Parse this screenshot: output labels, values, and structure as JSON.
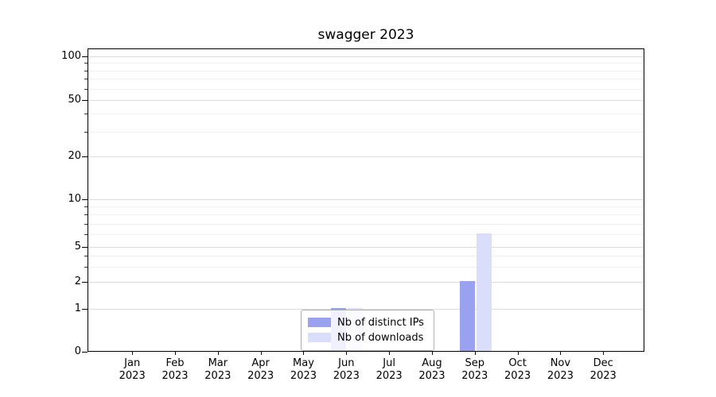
{
  "figure": {
    "title": "swagger 2023"
  },
  "chart_data": {
    "type": "bar",
    "title": "swagger 2023",
    "categories": [
      "Jan 2023",
      "Feb 2023",
      "Mar 2023",
      "Apr 2023",
      "May 2023",
      "Jun 2023",
      "Jul 2023",
      "Aug 2023",
      "Sep 2023",
      "Oct 2023",
      "Nov 2023",
      "Dec 2023"
    ],
    "series": [
      {
        "name": "Nb of distinct IPs",
        "color": "#9aa1ee",
        "values": [
          0,
          0,
          0,
          0,
          0,
          1,
          0,
          0,
          2,
          0,
          0,
          0
        ]
      },
      {
        "name": "Nb of downloads",
        "color": "#dbdefb",
        "values": [
          0,
          0,
          0,
          0,
          0,
          1,
          0,
          0,
          6,
          0,
          0,
          0
        ]
      }
    ],
    "xlabel": "",
    "ylabel": "",
    "yscale": "symlog",
    "ylim": [
      0,
      100
    ],
    "yticks": [
      0,
      1,
      2,
      5,
      10,
      20,
      50,
      100
    ],
    "yticks_minor": [
      3,
      4,
      6,
      7,
      8,
      9,
      30,
      40,
      60,
      70,
      80,
      90
    ],
    "grid": true,
    "legend_position": "lower center"
  }
}
